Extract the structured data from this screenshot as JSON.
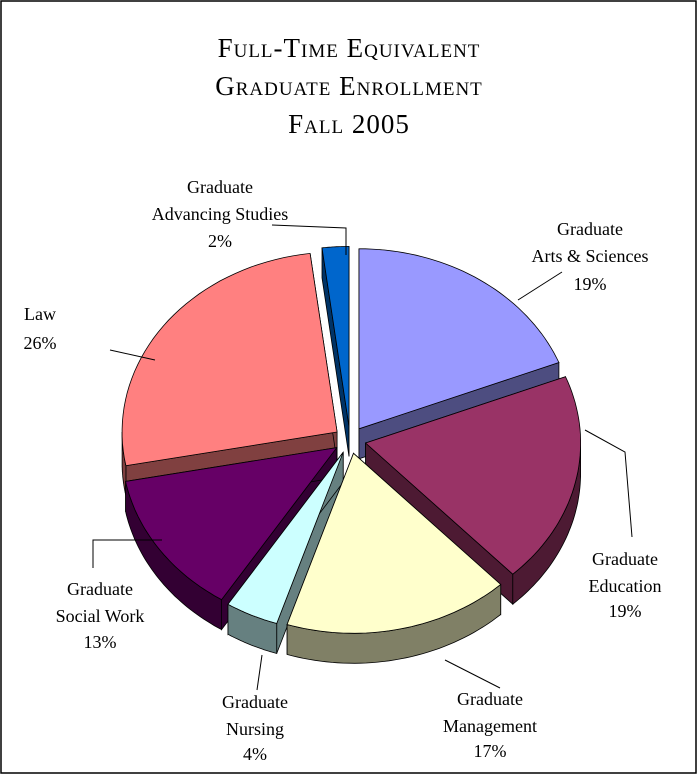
{
  "chart_data": {
    "type": "pie3d",
    "title": [
      "Full-Time Equivalent",
      "Graduate Enrollment",
      "Fall 2005"
    ],
    "categories": [
      "Graduate Arts & Sciences",
      "Graduate Education",
      "Graduate Management",
      "Graduate Nursing",
      "Graduate Social Work",
      "Law",
      "Graduate Advancing Studies"
    ],
    "values": [
      19,
      19,
      17,
      4,
      13,
      26,
      2
    ],
    "value_labels": [
      "19%",
      "19%",
      "17%",
      "4%",
      "13%",
      "26%",
      "2%"
    ],
    "colors": [
      "#9999ff",
      "#993366",
      "#ffffcc",
      "#ccffff",
      "#660066",
      "#ff8080",
      "#0066cc"
    ]
  }
}
